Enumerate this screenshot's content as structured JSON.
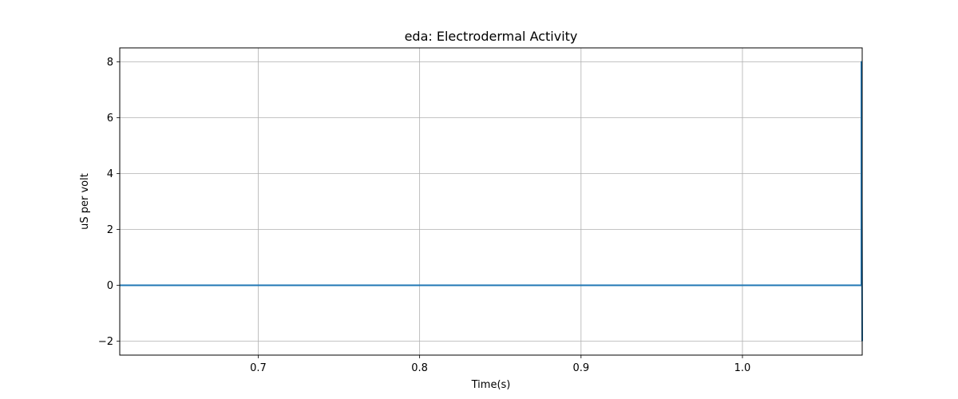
{
  "chart_data": {
    "type": "line",
    "title": "eda: Electrodermal Activity",
    "xlabel": "Time(s)",
    "ylabel": "uS per volt",
    "xlim": [
      0.6142,
      1.0742
    ],
    "ylim": [
      -2.5,
      8.5
    ],
    "xticks": [
      0.7,
      0.8,
      0.9,
      1.0
    ],
    "xtick_labels": [
      "0.7",
      "0.8",
      "0.9",
      "1.0"
    ],
    "yticks": [
      -2,
      0,
      2,
      4,
      6,
      8
    ],
    "ytick_labels": [
      "−2",
      "0",
      "2",
      "4",
      "6",
      "8"
    ],
    "grid": true,
    "series": [
      {
        "color": "#1f77b4",
        "x": [
          0.6142,
          1.0735,
          1.0737,
          1.0737,
          1.0742
        ],
        "y": [
          0,
          0,
          0,
          8,
          -2
        ]
      }
    ]
  }
}
